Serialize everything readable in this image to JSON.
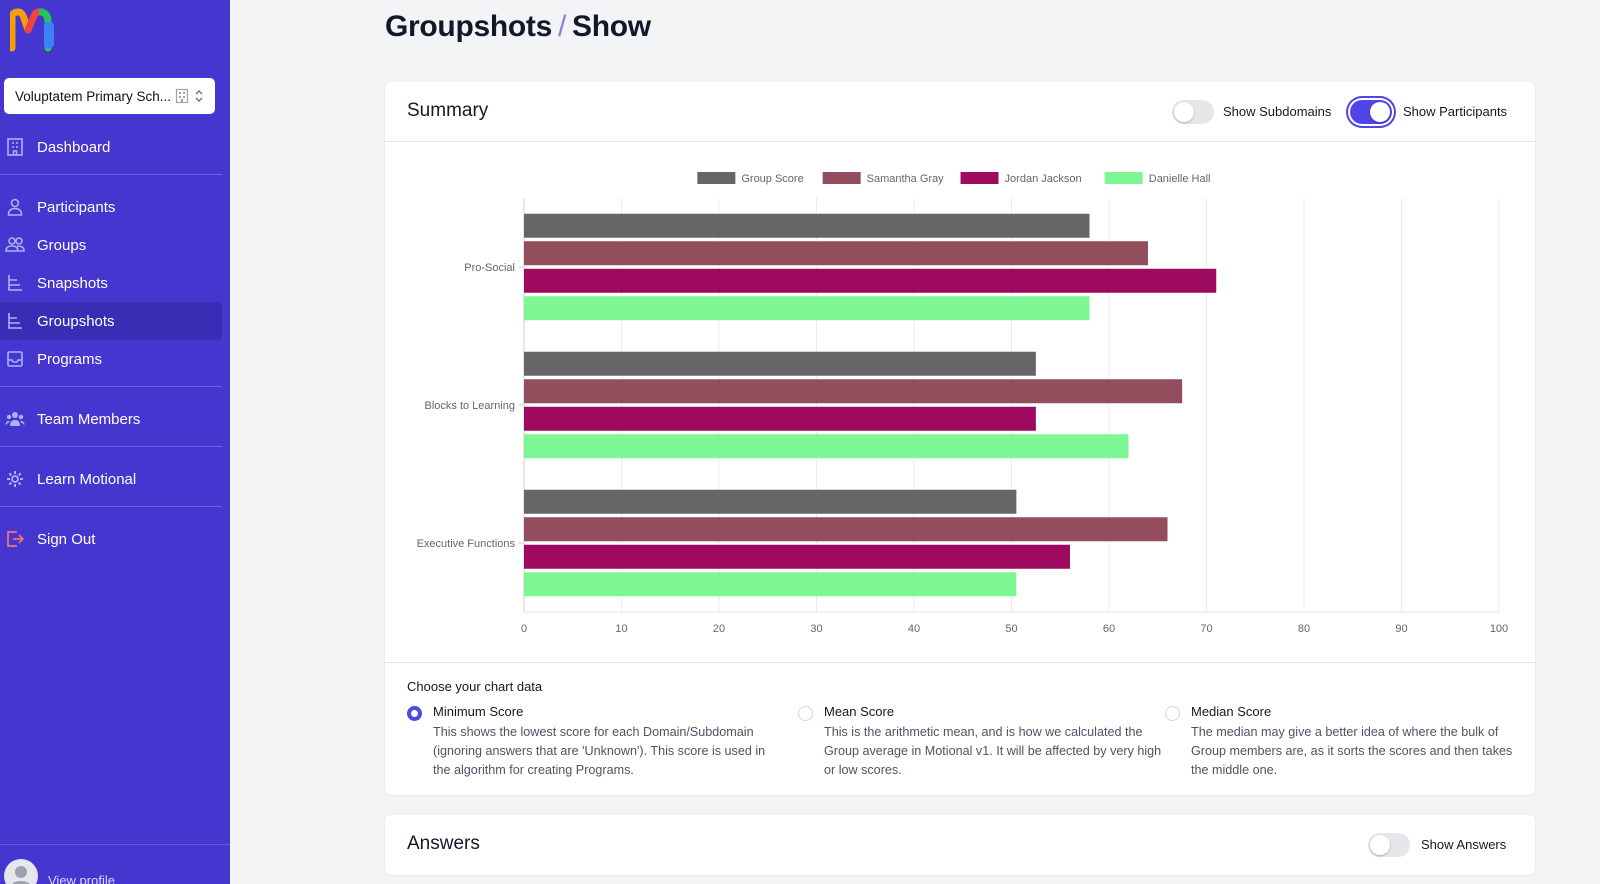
{
  "sidebar": {
    "school_select": "Voluptatem Primary Sch...",
    "items": [
      {
        "label": "Dashboard",
        "icon": "building-icon"
      },
      {
        "label": "Participants",
        "icon": "user-icon"
      },
      {
        "label": "Groups",
        "icon": "users-icon"
      },
      {
        "label": "Snapshots",
        "icon": "layers-icon"
      },
      {
        "label": "Groupshots",
        "icon": "layers-icon",
        "active": true
      },
      {
        "label": "Programs",
        "icon": "inbox-icon"
      },
      {
        "label": "Team Members",
        "icon": "user-group-icon"
      },
      {
        "label": "Learn Motional",
        "icon": "gear-icon"
      },
      {
        "label": "Sign Out",
        "icon": "logout-icon"
      }
    ],
    "view_profile": "View profile"
  },
  "page": {
    "title_part1": "Groupshots",
    "title_sep": "/",
    "title_part2": "Show"
  },
  "summary": {
    "title": "Summary",
    "show_subdomains_label": "Show Subdomains",
    "show_subdomains_on": false,
    "show_participants_label": "Show Participants",
    "show_participants_on": true
  },
  "chart_data": {
    "type": "bar",
    "orientation": "horizontal",
    "categories": [
      "Pro-Social",
      "Blocks to Learning",
      "Executive Functions"
    ],
    "series": [
      {
        "name": "Group Score",
        "color": "#666666",
        "values": [
          58,
          52.5,
          50.5
        ]
      },
      {
        "name": "Samantha Gray",
        "color": "#924e5c",
        "values": [
          64,
          67.5,
          66
        ]
      },
      {
        "name": "Jordan Jackson",
        "color": "#9e0a5e",
        "values": [
          71,
          52.5,
          56
        ]
      },
      {
        "name": "Danielle Hall",
        "color": "#7cf793",
        "values": [
          58,
          62,
          50.5
        ]
      }
    ],
    "xlim": [
      0,
      100
    ],
    "xticks": [
      "0",
      "10",
      "20",
      "30",
      "40",
      "50",
      "60",
      "70",
      "80",
      "90",
      "100"
    ],
    "legend": "top-center",
    "grid": true
  },
  "chart_options": {
    "label": "Choose your chart data",
    "options": [
      {
        "title": "Minimum Score",
        "checked": true,
        "desc": "This shows the lowest score for each Domain/Subdomain (ignoring answers that are 'Unknown'). This score is used in the algorithm for creating Programs."
      },
      {
        "title": "Mean Score",
        "checked": false,
        "desc": "This is the arithmetic mean, and is how we calculated the Group average in Motional v1. It will be affected by very high or low scores."
      },
      {
        "title": "Median Score",
        "checked": false,
        "desc": "The median may give a better idea of where the bulk of Group members are, as it sorts the scores and then takes the middle one."
      }
    ]
  },
  "answers": {
    "title": "Answers",
    "show_answers_label": "Show Answers",
    "show_answers_on": false
  }
}
